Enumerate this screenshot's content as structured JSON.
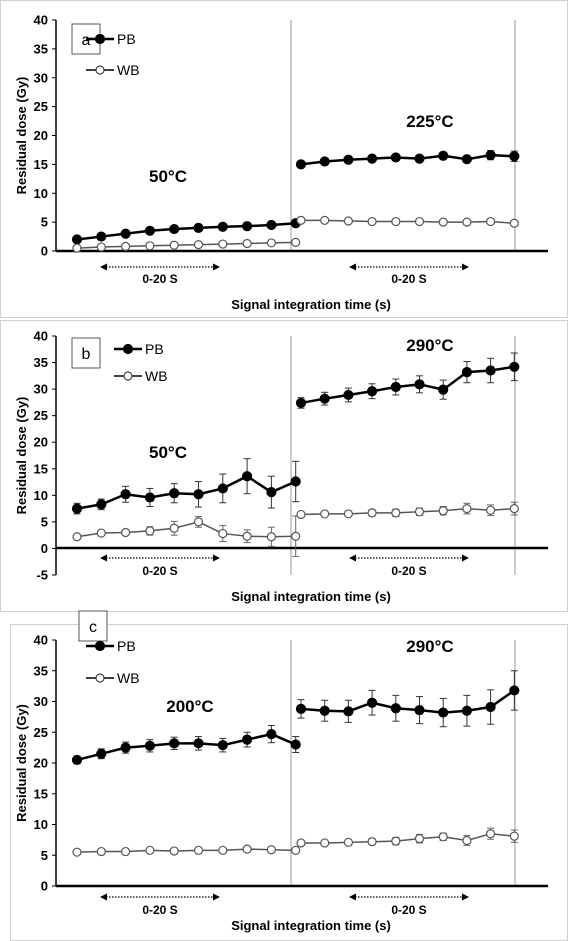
{
  "chart_data": [
    {
      "type": "line",
      "panel_label": "a",
      "ylabel": "Residual  dose  (Gy)",
      "xlabel": "Signal integration time (s)",
      "ylim": [
        0,
        40
      ],
      "yticks": [
        0,
        5,
        10,
        15,
        20,
        25,
        30,
        35,
        40
      ],
      "grid": false,
      "legend_position": "top-left",
      "groups": [
        {
          "temperature": "50°C",
          "window_label": "0-20 S",
          "series": [
            {
              "name": "PB",
              "marker": "filled",
              "values": [
                2.0,
                2.5,
                3.0,
                3.5,
                3.8,
                4.0,
                4.2,
                4.3,
                4.5,
                4.8
              ],
              "errors": [
                0.2,
                0.2,
                0.2,
                0.2,
                0.2,
                0.2,
                0.2,
                0.2,
                0.2,
                0.2
              ]
            },
            {
              "name": "WB",
              "marker": "open",
              "values": [
                0.5,
                0.7,
                0.8,
                0.9,
                1.0,
                1.1,
                1.2,
                1.3,
                1.4,
                1.5
              ],
              "errors": [
                0.1,
                0.1,
                0.1,
                0.1,
                0.1,
                0.1,
                0.1,
                0.1,
                0.1,
                0.1
              ]
            }
          ]
        },
        {
          "temperature": "225°C",
          "window_label": "0-20 S",
          "series": [
            {
              "name": "PB",
              "marker": "filled",
              "values": [
                15.0,
                15.5,
                15.8,
                16.0,
                16.2,
                16.0,
                16.5,
                15.9,
                16.6,
                16.4
              ],
              "errors": [
                0.3,
                0.3,
                0.3,
                0.3,
                0.3,
                0.3,
                0.4,
                0.5,
                0.8,
                0.9
              ]
            },
            {
              "name": "WB",
              "marker": "open",
              "values": [
                5.3,
                5.3,
                5.2,
                5.1,
                5.1,
                5.1,
                5.0,
                5.0,
                5.1,
                4.8
              ],
              "errors": [
                0.2,
                0.2,
                0.2,
                0.2,
                0.2,
                0.2,
                0.2,
                0.2,
                0.2,
                0.2
              ]
            }
          ]
        }
      ]
    },
    {
      "type": "line",
      "panel_label": "b",
      "ylabel": "Residual  dose  (Gy)",
      "xlabel": "Signal integration time (s)",
      "ylim": [
        -5,
        40
      ],
      "yticks": [
        -5,
        0,
        5,
        10,
        15,
        20,
        25,
        30,
        35,
        40
      ],
      "grid": false,
      "legend_position": "top-left",
      "groups": [
        {
          "temperature": "50°C",
          "window_label": "0-20 S",
          "series": [
            {
              "name": "PB",
              "marker": "filled",
              "values": [
                7.5,
                8.3,
                10.2,
                9.6,
                10.4,
                10.2,
                11.3,
                13.6,
                10.6,
                12.6
              ],
              "errors": [
                1.0,
                1.0,
                1.5,
                1.7,
                1.8,
                2.4,
                2.7,
                3.3,
                3.0,
                3.8
              ]
            },
            {
              "name": "WB",
              "marker": "open",
              "values": [
                2.2,
                2.9,
                3.0,
                3.3,
                3.8,
                5.0,
                2.8,
                2.3,
                2.2,
                2.3
              ],
              "errors": [
                0.3,
                0.4,
                0.5,
                0.8,
                1.3,
                1.0,
                1.5,
                1.2,
                1.8,
                3.8
              ]
            }
          ]
        },
        {
          "temperature": "290°C",
          "window_label": "0-20 S",
          "series": [
            {
              "name": "PB",
              "marker": "filled",
              "values": [
                27.4,
                28.2,
                28.9,
                29.6,
                30.4,
                30.9,
                29.9,
                33.2,
                33.5,
                34.2
              ],
              "errors": [
                1.0,
                1.2,
                1.3,
                1.4,
                1.5,
                1.6,
                1.8,
                2.0,
                2.3,
                2.6
              ]
            },
            {
              "name": "WB",
              "marker": "open",
              "values": [
                6.4,
                6.5,
                6.5,
                6.7,
                6.7,
                6.9,
                7.1,
                7.5,
                7.2,
                7.5
              ],
              "errors": [
                0.4,
                0.4,
                0.5,
                0.6,
                0.7,
                0.7,
                0.8,
                1.0,
                1.0,
                1.2
              ]
            }
          ]
        }
      ]
    },
    {
      "type": "line",
      "panel_label": "c",
      "ylabel": "Residual  dose  (Gy)",
      "xlabel": "Signal integration time (s)",
      "ylim": [
        0,
        40
      ],
      "yticks": [
        0,
        5,
        10,
        15,
        20,
        25,
        30,
        35,
        40
      ],
      "grid": false,
      "legend_position": "top-left",
      "groups": [
        {
          "temperature": "200°C",
          "window_label": "0-20 S",
          "series": [
            {
              "name": "PB",
              "marker": "filled",
              "values": [
                20.5,
                21.5,
                22.5,
                22.8,
                23.2,
                23.2,
                22.9,
                23.8,
                24.7,
                23.0
              ],
              "errors": [
                0.6,
                0.8,
                0.9,
                1.0,
                1.0,
                1.1,
                1.1,
                1.2,
                1.4,
                1.3
              ]
            },
            {
              "name": "WB",
              "marker": "open",
              "values": [
                5.5,
                5.6,
                5.6,
                5.8,
                5.7,
                5.8,
                5.8,
                6.0,
                5.9,
                5.8
              ],
              "errors": [
                0.2,
                0.2,
                0.2,
                0.2,
                0.2,
                0.2,
                0.2,
                0.2,
                0.2,
                0.2
              ]
            }
          ]
        },
        {
          "temperature": "290°C",
          "window_label": "0-20 S",
          "series": [
            {
              "name": "PB",
              "marker": "filled",
              "values": [
                28.8,
                28.5,
                28.4,
                29.8,
                28.9,
                28.6,
                28.2,
                28.5,
                29.1,
                31.8
              ],
              "errors": [
                1.5,
                1.7,
                1.8,
                2.0,
                2.1,
                2.2,
                2.3,
                2.5,
                2.8,
                3.2
              ]
            },
            {
              "name": "WB",
              "marker": "open",
              "values": [
                7.0,
                7.0,
                7.1,
                7.2,
                7.3,
                7.7,
                8.0,
                7.4,
                8.5,
                8.1
              ],
              "errors": [
                0.3,
                0.3,
                0.4,
                0.5,
                0.6,
                0.7,
                0.6,
                0.8,
                0.9,
                1.0
              ]
            }
          ]
        }
      ]
    }
  ]
}
